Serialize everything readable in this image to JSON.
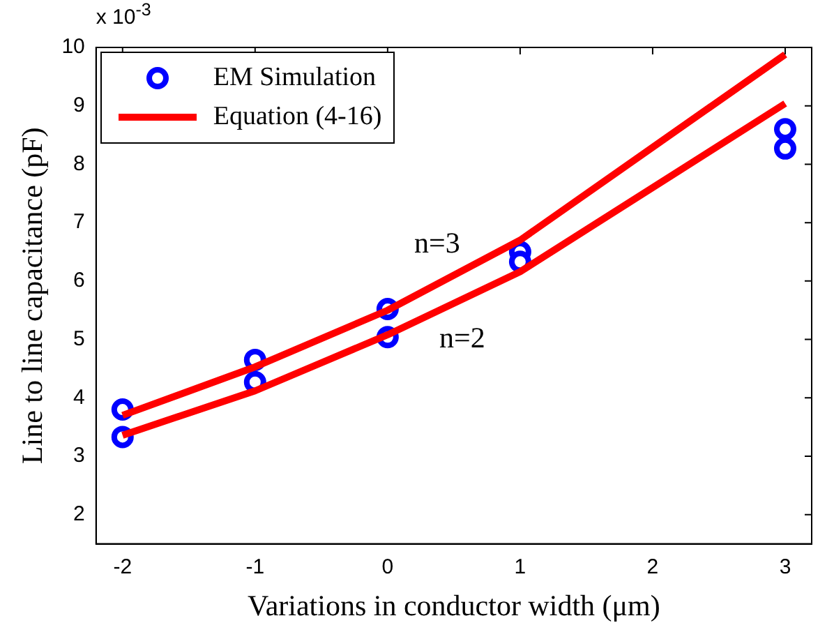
{
  "chart_data": {
    "type": "line",
    "xlabel": "Variations in conductor width (μm)",
    "ylabel": "Line to line capacitance (pF)",
    "xlim": [
      -2.2,
      3.2
    ],
    "xticks": [
      -2,
      -1,
      0,
      1,
      2,
      3
    ],
    "ylim": [
      1.5,
      10
    ],
    "yticks": [
      2,
      3,
      4,
      5,
      6,
      7,
      8,
      9,
      10
    ],
    "grid": false,
    "legend": "top left",
    "series": [
      {
        "name": "EM Simulation",
        "type": "scatter",
        "marker": "circle",
        "color": "#0000ff",
        "x": [
          -2,
          -2,
          -1,
          -1,
          0,
          0,
          1,
          1,
          3,
          3
        ],
        "values": [
          3.8,
          3.33,
          4.65,
          4.27,
          5.52,
          5.04,
          6.5,
          6.33,
          8.6,
          8.27
        ]
      },
      {
        "name": "Equation (4-16)",
        "type": "line",
        "marker": "none",
        "color": "#ff0000",
        "x": [
          -2,
          -1,
          0,
          1,
          3
        ],
        "values": [
          3.7,
          4.53,
          5.5,
          6.7,
          9.88
        ]
      },
      {
        "type": "line",
        "marker": "none",
        "color": "#ff0000",
        "x": [
          -2,
          -1,
          0,
          1,
          3
        ],
        "values": [
          3.36,
          4.12,
          5.08,
          6.16,
          9.04
        ]
      }
    ],
    "annotations": [
      "x 10$^{-3}$",
      "n=3",
      "n=2"
    ]
  }
}
